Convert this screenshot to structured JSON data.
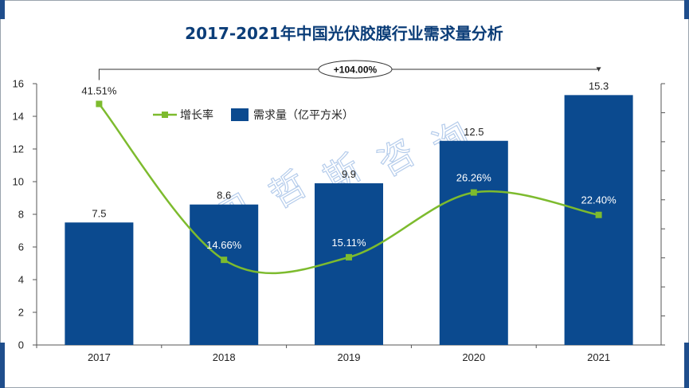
{
  "chart_data": {
    "type": "bar",
    "title": "2017-2021年中国光伏胶膜行业需求量分析",
    "categories": [
      "2017",
      "2018",
      "2019",
      "2020",
      "2021"
    ],
    "series": [
      {
        "name": "需求量（亿平方米）",
        "type": "bar",
        "values": [
          7.5,
          8.6,
          9.9,
          12.5,
          15.3
        ],
        "labels": [
          "7.5",
          "8.6",
          "9.9",
          "12.5",
          "15.3"
        ]
      },
      {
        "name": "增长率",
        "type": "line",
        "axis": "secondary",
        "values": [
          41.51,
          14.66,
          15.11,
          26.26,
          22.4
        ],
        "labels": [
          "41.51%",
          "14.66%",
          "15.11%",
          "26.26%",
          "22.40%"
        ]
      }
    ],
    "ylim": [
      0,
      16
    ],
    "yticks": [
      "0",
      "2",
      "4",
      "6",
      "8",
      "10",
      "12",
      "14",
      "16"
    ],
    "y2lim": [
      0,
      45
    ],
    "annotation": "+104.00%",
    "watermark": "贝哲斯咨询",
    "colors": {
      "bar": "#0b4a8f",
      "line": "#7dbb2e",
      "frame": "#1f4e8c"
    }
  }
}
